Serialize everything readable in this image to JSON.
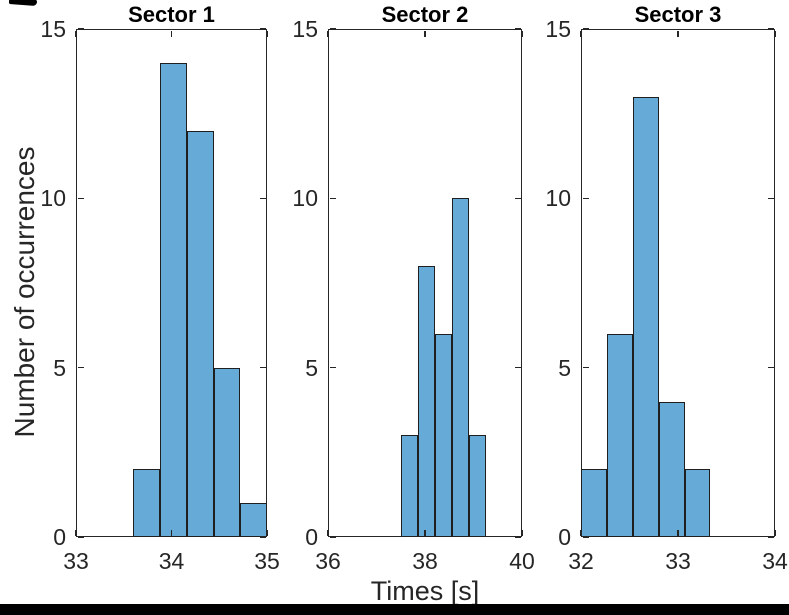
{
  "figure": {
    "ylabel": "Number of occurrences",
    "xlabel": "Times [s]",
    "colors": {
      "bar_fill": "#66AAD7",
      "bar_edge": "#1f1f1f",
      "axis": "#262626",
      "text": "#262626",
      "letterbox": "#000000"
    }
  },
  "chart_data": [
    {
      "type": "bar",
      "title": "Sector 1",
      "bin_start": 33.6,
      "bin_width": 0.28,
      "counts": [
        2,
        14,
        12,
        5,
        1
      ],
      "xlim": [
        33,
        35
      ],
      "xticks": [
        33,
        34,
        35
      ],
      "ylim": [
        0,
        15
      ],
      "yticks": [
        0,
        5,
        10,
        15
      ],
      "xlabel": "Times [s]",
      "ylabel": "Number of occurrences",
      "grid": false,
      "legend": null
    },
    {
      "type": "bar",
      "title": "Sector 2",
      "bin_start": 37.5,
      "bin_width": 0.35,
      "counts": [
        3,
        8,
        6,
        10,
        3
      ],
      "xlim": [
        36,
        40
      ],
      "xticks": [
        36,
        38,
        40
      ],
      "ylim": [
        0,
        15
      ],
      "yticks": [
        0,
        5,
        10,
        15
      ],
      "xlabel": "Times [s]",
      "ylabel": "Number of occurrences",
      "grid": false,
      "legend": null
    },
    {
      "type": "bar",
      "title": "Sector 3",
      "bin_start": 32.0,
      "bin_width": 0.267,
      "counts": [
        2,
        6,
        13,
        4,
        2
      ],
      "xlim": [
        32,
        34
      ],
      "xticks": [
        32,
        33,
        34
      ],
      "ylim": [
        0,
        15
      ],
      "yticks": [
        0,
        5,
        10,
        15
      ],
      "xlabel": "Times [s]",
      "ylabel": "Number of occurrences",
      "grid": false,
      "legend": null
    }
  ]
}
